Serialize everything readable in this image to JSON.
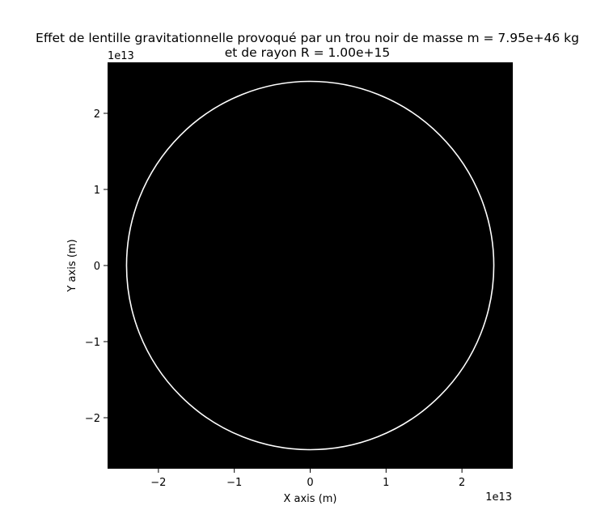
{
  "chart_data": {
    "type": "line",
    "title": "Effet de lentille gravitationnelle provoqué par un trou noir de masse m = 7.95e+46 kg",
    "subtitle": "et de rayon R = 1.00e+15",
    "xlabel": "X axis (m)",
    "ylabel": "Y axis (m)",
    "x_offset_label": "1e13",
    "y_offset_label": "1e13",
    "xlim": [
      -2.67,
      2.67
    ],
    "ylim": [
      -2.67,
      2.67
    ],
    "xticks": [
      -2,
      -1,
      0,
      1,
      2
    ],
    "yticks": [
      -2,
      -1,
      0,
      1,
      2
    ],
    "xtick_labels": [
      "−2",
      "−1",
      "0",
      "1",
      "2"
    ],
    "ytick_labels": [
      "−2",
      "−1",
      "0",
      "1",
      "2"
    ],
    "grid": false,
    "background_color": "#000000",
    "series": [
      {
        "shape": "circle",
        "center": [
          0,
          0
        ],
        "radius": 2.42,
        "color": "#ffffff"
      }
    ]
  }
}
